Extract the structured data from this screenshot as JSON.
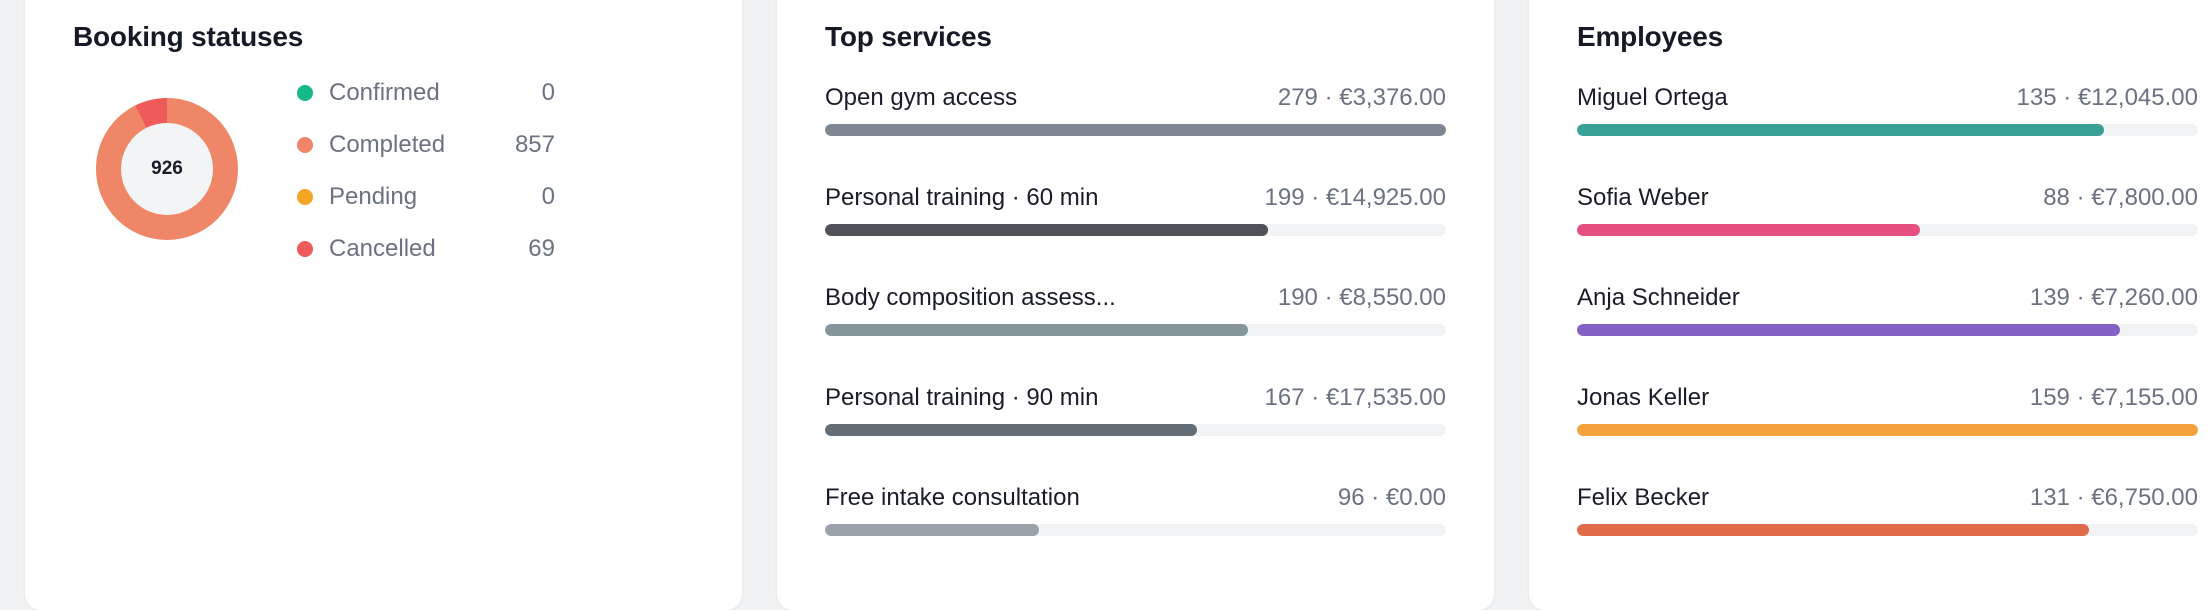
{
  "statuses": {
    "title": "Booking statuses",
    "total": "926",
    "items": [
      {
        "label": "Confirmed",
        "value": "0",
        "count": 0,
        "color": "#16b98a"
      },
      {
        "label": "Completed",
        "value": "857",
        "count": 857,
        "color": "#ef8668"
      },
      {
        "label": "Pending",
        "value": "0",
        "count": 0,
        "color": "#f5a524"
      },
      {
        "label": "Cancelled",
        "value": "69",
        "count": 69,
        "color": "#ef5a5a"
      }
    ]
  },
  "services": {
    "title": "Top services",
    "items": [
      {
        "label": "Open gym access",
        "value": "279 · €3,376.00",
        "fraction": 1.0,
        "color": "#7d8792"
      },
      {
        "label": "Personal training · 60 min",
        "value": "199 · €14,925.00",
        "fraction": 0.713,
        "color": "#4f5257"
      },
      {
        "label": "Body composition assess...",
        "value": "190 · €8,550.00",
        "fraction": 0.681,
        "color": "#84959c"
      },
      {
        "label": "Personal training · 90 min",
        "value": "167 · €17,535.00",
        "fraction": 0.599,
        "color": "#636d76"
      },
      {
        "label": "Free intake consultation",
        "value": "96 · €0.00",
        "fraction": 0.344,
        "color": "#9aa3ab"
      }
    ]
  },
  "employees": {
    "title": "Employees",
    "items": [
      {
        "label": "Miguel Ortega",
        "value": "135 · €12,045.00",
        "fraction": 0.849,
        "color": "#3ba196"
      },
      {
        "label": "Sofia Weber",
        "value": "88 · €7,800.00",
        "fraction": 0.553,
        "color": "#e5507f"
      },
      {
        "label": "Anja Schneider",
        "value": "139 · €7,260.00",
        "fraction": 0.874,
        "color": "#8461c5"
      },
      {
        "label": "Jonas Keller",
        "value": "159 · €7,155.00",
        "fraction": 1.0,
        "color": "#f4a33c"
      },
      {
        "label": "Felix Becker",
        "value": "131 · €6,750.00",
        "fraction": 0.824,
        "color": "#e06b4a"
      }
    ]
  }
}
